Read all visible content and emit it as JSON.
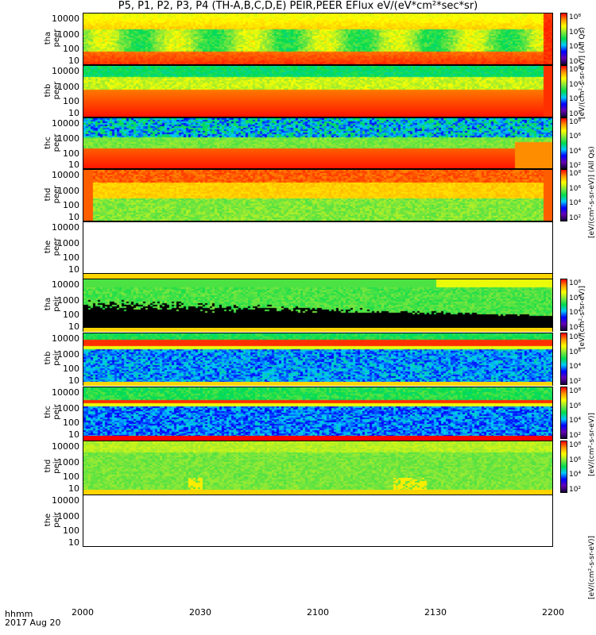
{
  "chart_data": {
    "type": "heatmap",
    "title": "P5, P1, P2, P3, P4 (TH-A,B,C,D,E) PEIR,PEER EFlux eV/(eV*cm²*sec*sr)",
    "x_ticks": [
      "2000",
      "2030",
      "2100",
      "2130",
      "2200"
    ],
    "x_caption_line1": "hhmm",
    "x_caption_line2": "2017 Aug 20",
    "y_ticks": [
      "10000",
      "1000",
      "100",
      "10"
    ],
    "colorbar_ticks": [
      "10⁸",
      "10⁶",
      "10⁴",
      "10²"
    ],
    "colorbar_label_peer": "[eV/(cm²-s-sr-eV)] (All Qs)",
    "colorbar_label_peir": "[eV/(cm²-s-sr-eV)]",
    "panels": [
      {
        "probe": "tha",
        "species": "peer",
        "label_line1": "tha",
        "label_line2": "peer",
        "pattern": "tha_peer"
      },
      {
        "probe": "thb",
        "species": "peer",
        "label_line1": "thb",
        "label_line2": "peer",
        "pattern": "thb_peer"
      },
      {
        "probe": "thc",
        "species": "peer",
        "label_line1": "thc",
        "label_line2": "peer",
        "pattern": "thc_peer"
      },
      {
        "probe": "thd",
        "species": "peer",
        "label_line1": "thd",
        "label_line2": "peer",
        "pattern": "thd_peer"
      },
      {
        "probe": "the",
        "species": "peer",
        "label_line1": "the",
        "label_line2": "peer",
        "pattern": "empty"
      },
      {
        "probe": "tha",
        "species": "peir",
        "label_line1": "tha",
        "label_line2": "peir",
        "pattern": "tha_peir"
      },
      {
        "probe": "thb",
        "species": "peir",
        "label_line1": "thb",
        "label_line2": "peir",
        "pattern": "thb_peir"
      },
      {
        "probe": "thc",
        "species": "peir",
        "label_line1": "thc",
        "label_line2": "peir",
        "pattern": "thc_peir"
      },
      {
        "probe": "thd",
        "species": "peir",
        "label_line1": "thd",
        "label_line2": "peir",
        "pattern": "thd_peir"
      },
      {
        "probe": "the",
        "species": "peir",
        "label_line1": "the",
        "label_line2": "peir",
        "pattern": "empty"
      }
    ],
    "y_range": [
      5,
      30000
    ],
    "y_scale": "log",
    "x_range": [
      "2000",
      "2200"
    ]
  }
}
